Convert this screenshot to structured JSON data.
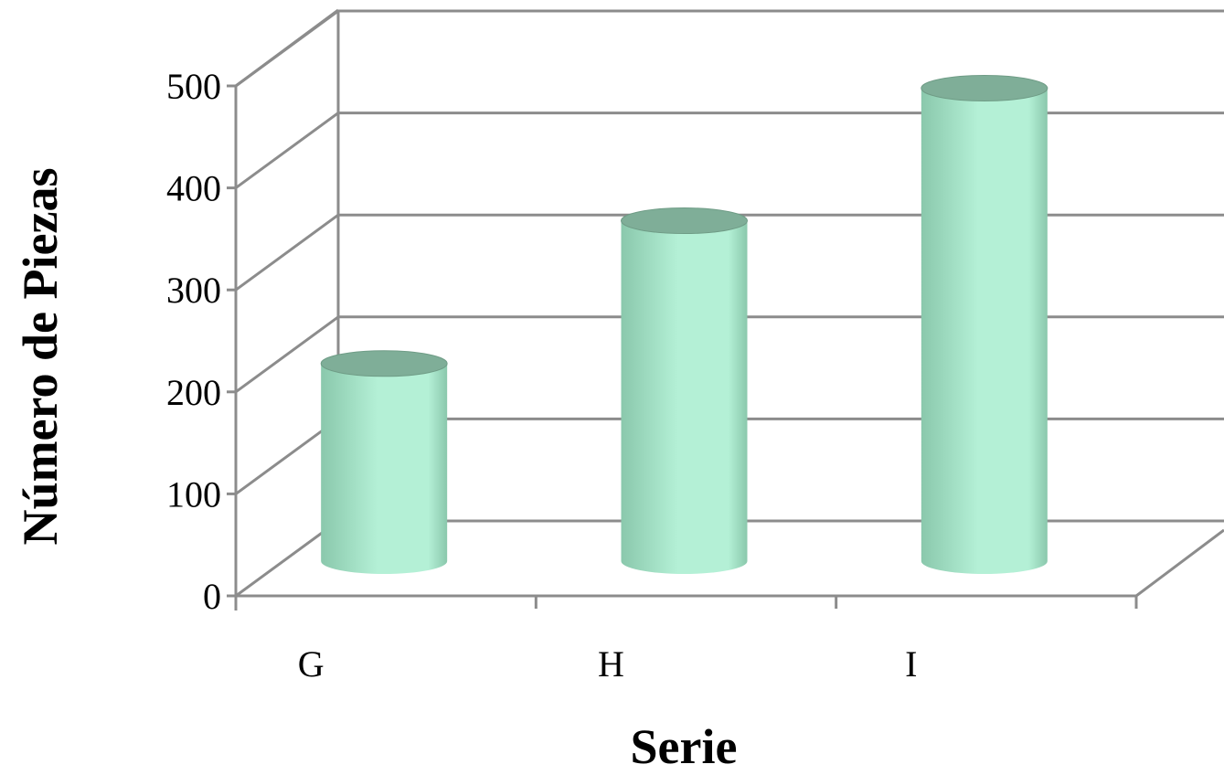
{
  "chart_data": {
    "type": "bar",
    "style": "3d-cylinder",
    "categories": [
      "G",
      "H",
      "I"
    ],
    "values": [
      200,
      340,
      470
    ],
    "xlabel": "Serie",
    "ylabel": "Número de Piezas",
    "ylim": [
      0,
      500
    ],
    "yticks": [
      0,
      100,
      200,
      300,
      400,
      500
    ],
    "grid": true,
    "legend": "none",
    "colors": {
      "bar_body_light": "#b4f0d6",
      "bar_body_dark": "#8ac8ac",
      "bar_top": "#7fae98",
      "grid": "#8c8c8c",
      "axis": "#8c8c8c"
    }
  }
}
